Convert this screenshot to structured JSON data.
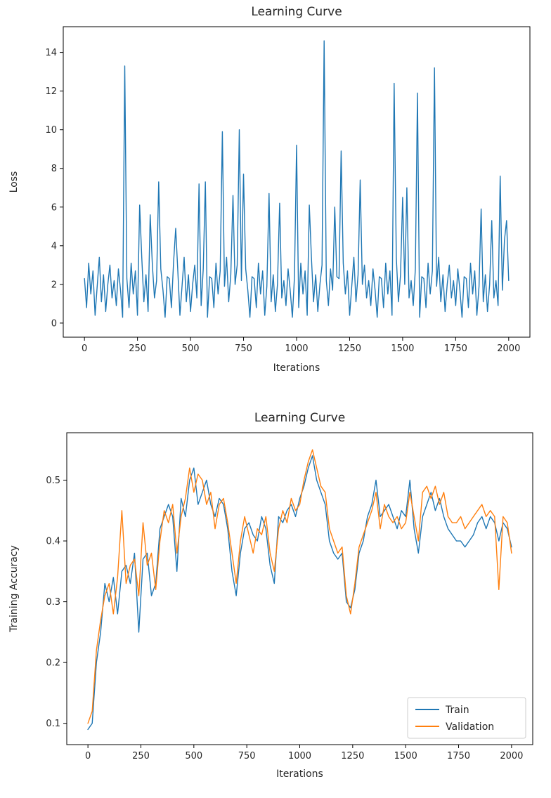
{
  "figure": {
    "background": "#ffffff",
    "text_color": "#262626",
    "spine_color": "#000000"
  },
  "chart_data": [
    {
      "id": "loss-chart",
      "type": "line",
      "title": "Learning Curve",
      "xlabel": "Iterations",
      "ylabel": "Loss",
      "xlim": [
        -100,
        2100
      ],
      "ylim": [
        -0.73,
        15.33
      ],
      "xticks": [
        0,
        250,
        500,
        750,
        1000,
        1250,
        1500,
        1750,
        2000
      ],
      "yticks": [
        0,
        2,
        4,
        6,
        8,
        10,
        12,
        14
      ],
      "ytick_decimals": 0,
      "grid": false,
      "legend": null,
      "series": [
        {
          "name": "Loss",
          "color": "#1f77b4",
          "x_start": 0,
          "x_step": 10,
          "values": [
            2.3,
            0.8,
            3.1,
            1.5,
            2.7,
            0.4,
            1.9,
            3.4,
            1.1,
            2.5,
            0.6,
            2.0,
            3.0,
            1.3,
            2.2,
            0.9,
            2.8,
            1.7,
            0.3,
            13.3,
            2.3,
            0.8,
            3.1,
            1.5,
            2.7,
            0.4,
            6.1,
            3.4,
            1.1,
            2.5,
            0.6,
            5.6,
            3.0,
            1.3,
            2.2,
            7.3,
            2.8,
            1.7,
            0.3,
            2.4,
            2.3,
            0.8,
            3.1,
            4.9,
            2.7,
            0.4,
            1.9,
            3.4,
            1.1,
            2.5,
            0.6,
            2.0,
            3.0,
            1.3,
            7.2,
            0.9,
            2.8,
            7.3,
            0.3,
            2.4,
            2.3,
            0.8,
            3.1,
            1.5,
            2.7,
            9.9,
            1.9,
            3.4,
            1.1,
            2.5,
            6.6,
            2.0,
            3.0,
            10.0,
            2.2,
            7.7,
            2.8,
            1.7,
            0.3,
            2.4,
            2.3,
            0.8,
            3.1,
            1.5,
            2.7,
            0.4,
            1.9,
            6.7,
            1.1,
            2.5,
            0.6,
            2.0,
            6.2,
            1.3,
            2.2,
            0.9,
            2.8,
            1.7,
            0.3,
            2.4,
            9.2,
            0.8,
            3.1,
            1.5,
            2.7,
            0.4,
            6.1,
            3.4,
            1.1,
            2.5,
            0.6,
            2.0,
            3.0,
            14.6,
            2.2,
            0.9,
            2.8,
            1.7,
            6.0,
            2.4,
            2.3,
            8.9,
            3.1,
            1.5,
            2.7,
            0.4,
            1.9,
            3.4,
            1.1,
            2.5,
            7.4,
            2.0,
            3.0,
            1.3,
            2.2,
            0.9,
            2.8,
            1.7,
            0.3,
            2.4,
            2.3,
            0.8,
            3.1,
            1.5,
            2.7,
            0.4,
            12.4,
            3.4,
            1.1,
            2.5,
            6.5,
            2.0,
            7.0,
            1.3,
            2.2,
            0.9,
            2.8,
            11.9,
            0.3,
            2.4,
            2.3,
            0.8,
            3.1,
            1.5,
            2.7,
            13.2,
            1.9,
            3.4,
            1.1,
            2.5,
            0.6,
            2.0,
            3.0,
            1.3,
            2.2,
            0.9,
            2.8,
            1.7,
            0.3,
            2.4,
            2.3,
            0.8,
            3.1,
            1.5,
            2.7,
            0.4,
            1.9,
            5.9,
            1.1,
            2.5,
            0.6,
            2.0,
            5.3,
            1.3,
            2.2,
            0.9,
            7.6,
            1.7,
            4.3,
            5.3,
            2.2
          ]
        }
      ]
    },
    {
      "id": "accuracy-chart",
      "type": "line",
      "title": "Learning Curve",
      "xlabel": "Iterations",
      "ylabel": "Training Accuracy",
      "xlim": [
        -100,
        2100
      ],
      "ylim": [
        0.065,
        0.578
      ],
      "xticks": [
        0,
        250,
        500,
        750,
        1000,
        1250,
        1500,
        1750,
        2000
      ],
      "yticks": [
        0.1,
        0.2,
        0.3,
        0.4,
        0.5
      ],
      "ytick_decimals": 1,
      "grid": false,
      "legend": {
        "location": "lower right",
        "labels": [
          "Train",
          "Validation"
        ]
      },
      "series": [
        {
          "name": "Train",
          "color": "#1f77b4",
          "x_start": 0,
          "x_step": 20,
          "values": [
            0.09,
            0.1,
            0.2,
            0.25,
            0.33,
            0.3,
            0.34,
            0.28,
            0.35,
            0.36,
            0.33,
            0.38,
            0.25,
            0.37,
            0.38,
            0.31,
            0.33,
            0.42,
            0.44,
            0.46,
            0.44,
            0.35,
            0.47,
            0.44,
            0.5,
            0.52,
            0.46,
            0.48,
            0.5,
            0.46,
            0.44,
            0.47,
            0.46,
            0.42,
            0.35,
            0.31,
            0.38,
            0.42,
            0.43,
            0.41,
            0.4,
            0.44,
            0.42,
            0.36,
            0.33,
            0.44,
            0.43,
            0.45,
            0.46,
            0.44,
            0.47,
            0.49,
            0.52,
            0.54,
            0.5,
            0.48,
            0.46,
            0.4,
            0.38,
            0.37,
            0.38,
            0.3,
            0.29,
            0.32,
            0.38,
            0.4,
            0.44,
            0.46,
            0.5,
            0.44,
            0.45,
            0.46,
            0.44,
            0.42,
            0.45,
            0.44,
            0.5,
            0.42,
            0.38,
            0.44,
            0.46,
            0.48,
            0.45,
            0.47,
            0.44,
            0.42,
            0.41,
            0.4,
            0.4,
            0.39,
            0.4,
            0.41,
            0.43,
            0.44,
            0.42,
            0.44,
            0.43,
            0.4,
            0.43,
            0.42,
            0.39
          ]
        },
        {
          "name": "Validation",
          "color": "#ff7f0e",
          "x_start": 0,
          "x_step": 20,
          "values": [
            0.1,
            0.12,
            0.22,
            0.27,
            0.31,
            0.33,
            0.28,
            0.34,
            0.45,
            0.33,
            0.36,
            0.37,
            0.31,
            0.43,
            0.36,
            0.38,
            0.32,
            0.4,
            0.45,
            0.43,
            0.46,
            0.38,
            0.44,
            0.47,
            0.52,
            0.48,
            0.51,
            0.5,
            0.46,
            0.48,
            0.42,
            0.46,
            0.47,
            0.43,
            0.38,
            0.33,
            0.4,
            0.44,
            0.41,
            0.38,
            0.42,
            0.41,
            0.44,
            0.38,
            0.35,
            0.42,
            0.45,
            0.43,
            0.47,
            0.45,
            0.46,
            0.5,
            0.53,
            0.55,
            0.52,
            0.49,
            0.48,
            0.42,
            0.4,
            0.38,
            0.39,
            0.31,
            0.28,
            0.33,
            0.39,
            0.41,
            0.43,
            0.45,
            0.48,
            0.42,
            0.46,
            0.44,
            0.43,
            0.44,
            0.42,
            0.43,
            0.48,
            0.44,
            0.4,
            0.48,
            0.49,
            0.47,
            0.49,
            0.46,
            0.48,
            0.44,
            0.43,
            0.43,
            0.44,
            0.42,
            0.43,
            0.44,
            0.45,
            0.46,
            0.44,
            0.45,
            0.44,
            0.32,
            0.44,
            0.43,
            0.38
          ]
        }
      ]
    }
  ]
}
